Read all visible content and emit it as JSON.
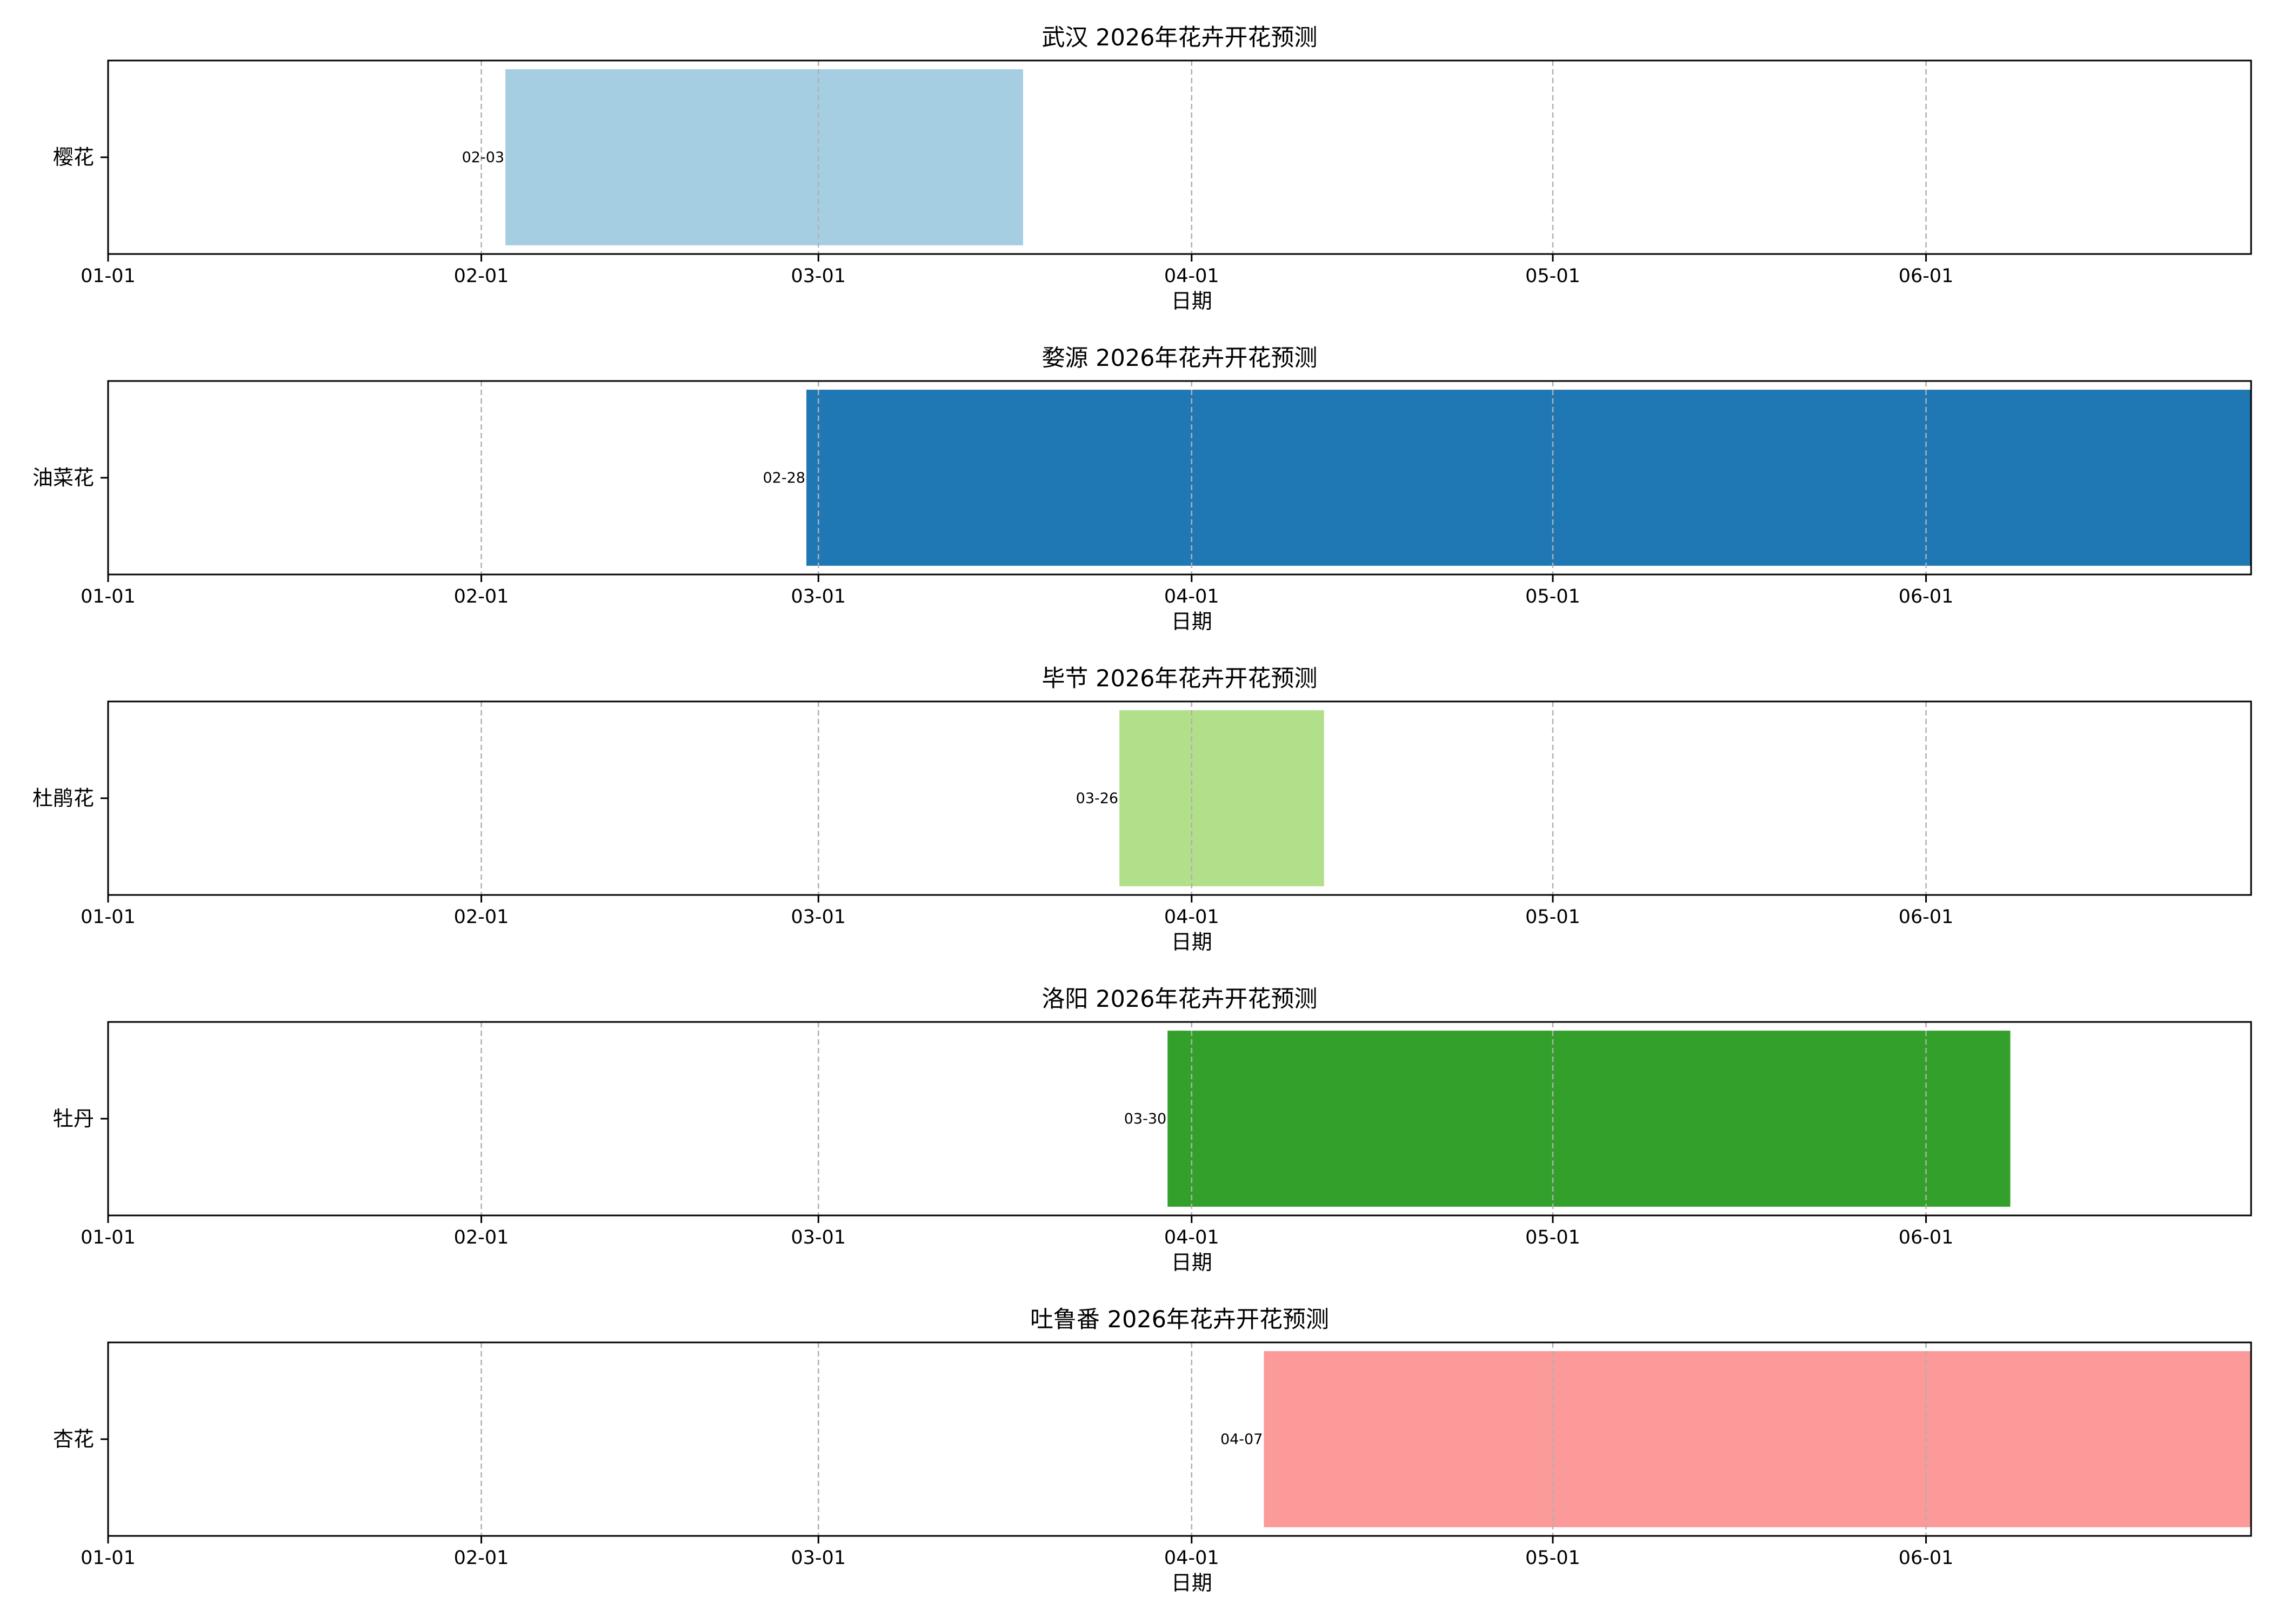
{
  "chart_data": [
    {
      "type": "bar",
      "orientation": "horizontal",
      "title": "武汉 2026年花卉开花预测",
      "xlabel": "日期",
      "category": "樱花",
      "start": "2026-02-03",
      "end": "2026-03-18",
      "start_label": "02-03",
      "color": "#a6cee3"
    },
    {
      "type": "bar",
      "orientation": "horizontal",
      "title": "婺源 2026年花卉开花预测",
      "xlabel": "日期",
      "category": "油菜花",
      "start": "2026-02-28",
      "end": "2026-06-28",
      "start_label": "02-28",
      "color": "#1f78b4"
    },
    {
      "type": "bar",
      "orientation": "horizontal",
      "title": "毕节 2026年花卉开花预测",
      "xlabel": "日期",
      "category": "杜鹃花",
      "start": "2026-03-26",
      "end": "2026-04-12",
      "start_label": "03-26",
      "color": "#b2df8a"
    },
    {
      "type": "bar",
      "orientation": "horizontal",
      "title": "洛阳 2026年花卉开花预测",
      "xlabel": "日期",
      "category": "牡丹",
      "start": "2026-03-30",
      "end": "2026-06-08",
      "start_label": "03-30",
      "color": "#33a02c"
    },
    {
      "type": "bar",
      "orientation": "horizontal",
      "title": "吐鲁番 2026年花卉开花预测",
      "xlabel": "日期",
      "category": "杏花",
      "start": "2026-04-07",
      "end": "2026-06-28",
      "start_label": "04-07",
      "color": "#fb9a99"
    }
  ],
  "x_axis": {
    "range": [
      "2026-01-01",
      "2026-06-28"
    ],
    "ticks": [
      "2026-01-01",
      "2026-02-01",
      "2026-03-01",
      "2026-04-01",
      "2026-05-01",
      "2026-06-01"
    ],
    "tick_labels": [
      "01-01",
      "02-01",
      "03-01",
      "04-01",
      "05-01",
      "06-01"
    ],
    "grid": "vertical dashed",
    "grid_color": "#b0b0b0"
  }
}
